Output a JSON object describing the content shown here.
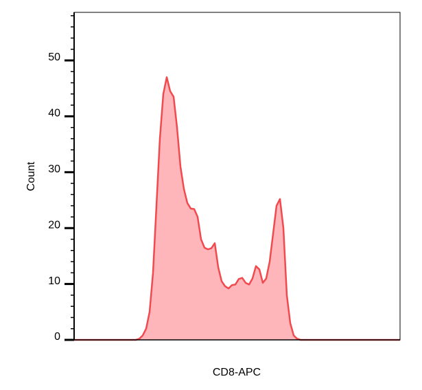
{
  "chart_data": {
    "type": "area",
    "x_label": "CD8-APC",
    "y_label": "Count",
    "color": "#f04a4f",
    "fill_color": "#ffb6ba",
    "categories": [
      null,
      null,
      null,
      null,
      null,
      null,
      null,
      null,
      null,
      null,
      null,
      null,
      null,
      null,
      null,
      null,
      null,
      null,
      null,
      null,
      null,
      null,
      null,
      null,
      null,
      null,
      null,
      null,
      null,
      null,
      null,
      null,
      null,
      null,
      null,
      null,
      null,
      null,
      null,
      null,
      null,
      null,
      null,
      null,
      null,
      null,
      null,
      null,
      null,
      null,
      null,
      null,
      null,
      null,
      null,
      null,
      null,
      null,
      null,
      null,
      null,
      null,
      null,
      null,
      null,
      null,
      null,
      null,
      null,
      null,
      null,
      null,
      null,
      null,
      null,
      null,
      null,
      null,
      null,
      null,
      null,
      null,
      null,
      null,
      null,
      null,
      null,
      null,
      null,
      null,
      null,
      null,
      null,
      null,
      null,
      null
    ],
    "values": [
      0,
      0,
      0,
      0,
      0,
      0,
      0,
      0,
      0,
      0,
      0,
      0,
      0,
      0,
      0,
      0,
      0,
      0,
      0,
      0.2,
      0.8,
      2,
      5,
      12,
      24,
      36,
      44,
      47,
      44.5,
      43.5,
      38,
      31,
      27,
      24.5,
      23.5,
      23.4,
      22,
      18,
      16.5,
      16.2,
      16.4,
      17.3,
      13,
      10.5,
      9.6,
      9.2,
      9.8,
      9.9,
      10.9,
      11.1,
      10.2,
      9.9,
      11,
      13.2,
      12.6,
      10.2,
      11,
      14,
      19,
      24,
      25.2,
      20,
      8,
      3,
      0.8,
      0.2,
      0,
      0,
      0,
      0,
      0,
      0,
      0,
      0,
      0,
      0,
      0,
      0,
      0,
      0,
      0,
      0,
      0,
      0,
      0,
      0,
      0,
      0,
      0,
      0,
      0,
      0,
      0,
      0,
      0,
      0
    ],
    "ylim": [
      0,
      58.6
    ],
    "yticks": [
      0,
      10,
      20,
      30,
      40,
      50
    ],
    "minor_yticks": [
      2,
      4,
      6,
      8,
      12,
      14,
      16,
      18,
      22,
      24,
      26,
      28,
      32,
      34,
      36,
      38,
      42,
      44,
      46,
      48,
      52,
      54,
      56,
      58
    ]
  }
}
